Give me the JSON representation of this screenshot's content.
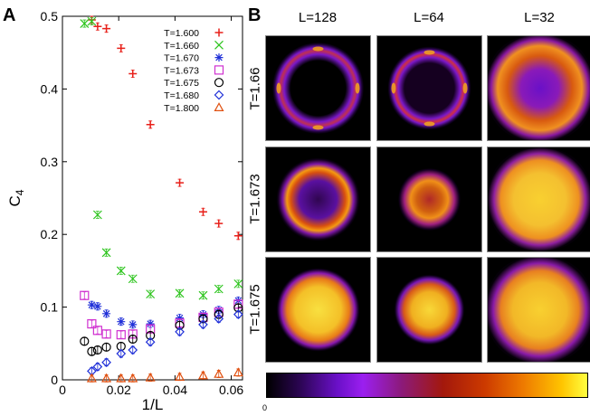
{
  "panel_a": {
    "letter": "A",
    "chart_data": {
      "type": "scatter",
      "xlabel": "1/L",
      "ylabel": "C4",
      "xlim": [
        0,
        0.064
      ],
      "ylim": [
        0,
        0.5
      ],
      "xticks": [
        "0",
        "0.02",
        "0.04",
        "0.06"
      ],
      "yticks": [
        "0",
        "0.1",
        "0.2",
        "0.3",
        "0.4",
        "0.5"
      ],
      "legend_position": "top-right",
      "x": [
        0.0078125,
        0.0104167,
        0.0125,
        0.015625,
        0.0208333,
        0.025,
        0.03125,
        0.0416667,
        0.05,
        0.0555556,
        0.0625
      ],
      "series": [
        {
          "name": "T=1.600",
          "marker": "plus",
          "color": "#e8201a",
          "values": [
            null,
            0.495,
            0.486,
            0.483,
            0.456,
            0.421,
            0.351,
            0.271,
            0.231,
            0.215,
            0.198
          ]
        },
        {
          "name": "T=1.660",
          "marker": "cross",
          "color": "#2cc41c",
          "values": [
            0.49,
            0.493,
            0.227,
            0.175,
            0.15,
            0.139,
            0.118,
            0.119,
            0.116,
            0.125,
            0.132
          ]
        },
        {
          "name": "T=1.670",
          "marker": "star",
          "color": "#2030d8",
          "values": [
            null,
            0.103,
            0.101,
            0.091,
            0.08,
            0.076,
            0.077,
            0.085,
            0.09,
            0.096,
            0.109
          ]
        },
        {
          "name": "T=1.673",
          "marker": "square",
          "color": "#d030d0",
          "values": [
            0.116,
            0.077,
            0.068,
            0.063,
            0.062,
            0.063,
            0.07,
            0.078,
            0.086,
            0.093,
            0.104
          ]
        },
        {
          "name": "T=1.675",
          "marker": "circle",
          "color": "#000000",
          "values": [
            0.053,
            0.039,
            0.041,
            0.045,
            0.046,
            0.056,
            0.061,
            0.075,
            0.084,
            0.09,
            0.099
          ]
        },
        {
          "name": "T=1.680",
          "marker": "diamond",
          "color": "#2030d8",
          "values": [
            null,
            0.012,
            0.018,
            0.024,
            0.036,
            0.041,
            0.052,
            0.066,
            0.076,
            0.084,
            0.09
          ]
        },
        {
          "name": "T=1.800",
          "marker": "triangle",
          "color": "#e05010",
          "values": [
            null,
            0.002,
            null,
            0.002,
            0.002,
            0.002,
            0.003,
            0.004,
            0.006,
            0.008,
            0.01
          ]
        }
      ]
    }
  },
  "panel_b": {
    "letter": "B",
    "columns": [
      "L=128",
      "L=64",
      "L=32"
    ],
    "rows": [
      "T=1.66",
      "T=1.673",
      "T=1.675"
    ],
    "colorbar_min_label": "0"
  }
}
